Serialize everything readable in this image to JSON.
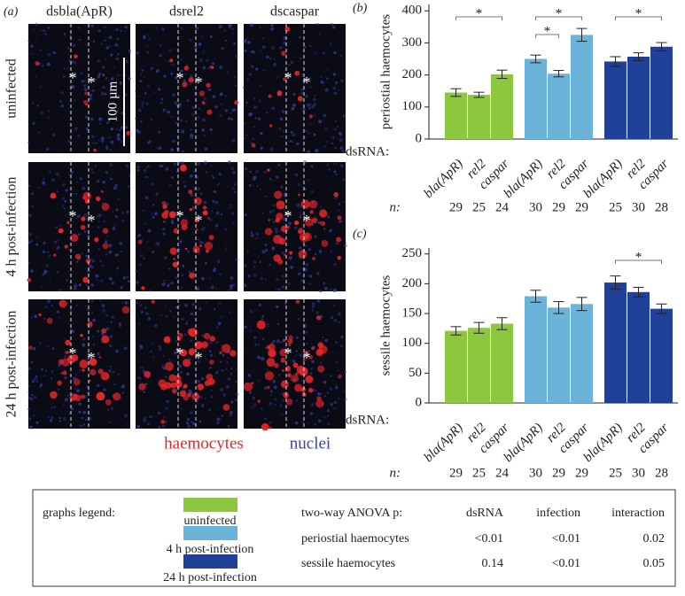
{
  "panel_a": {
    "label": "(a)",
    "columns": [
      "dsbla(ApR)",
      "dsrel2",
      "dscaspar"
    ],
    "rows": [
      "uninfected",
      "4 h post-infection",
      "24 h post-infection"
    ],
    "scale_bar": "100 µm",
    "asterisk": "*",
    "channels": [
      {
        "name": "haemocytes",
        "color": "#e8262a"
      },
      {
        "name": "nuclei",
        "color": "#3a3fa8"
      }
    ]
  },
  "chart_data": [
    {
      "type": "bar",
      "panel_label": "(b)",
      "ylabel": "periostial haemocytes",
      "x_label": "dsRNA:",
      "n_label": "n:",
      "categories": [
        "bla(ApR)",
        "rel2",
        "caspar"
      ],
      "ylim": [
        0,
        420
      ],
      "yticks": [
        0,
        100,
        200,
        300,
        400
      ],
      "series": [
        {
          "name": "uninfected",
          "color": "#8dc63f",
          "values": [
            145,
            138,
            202
          ],
          "errors": [
            12,
            8,
            13
          ],
          "n": [
            29,
            25,
            24
          ]
        },
        {
          "name": "4 h post-infection",
          "color": "#6bb3d9",
          "values": [
            250,
            204,
            325
          ],
          "errors": [
            12,
            10,
            20
          ],
          "n": [
            30,
            29,
            29
          ]
        },
        {
          "name": "24 h post-infection",
          "color": "#20409a",
          "values": [
            242,
            257,
            288
          ],
          "errors": [
            15,
            12,
            13
          ],
          "n": [
            25,
            30,
            28
          ]
        }
      ],
      "brackets": [
        {
          "series": 0,
          "from": 0,
          "to": 2,
          "label": "*"
        },
        {
          "series": 1,
          "from": 0,
          "to": 2,
          "label": "*"
        },
        {
          "series": 1,
          "from": 0,
          "to": 1,
          "label": "*"
        },
        {
          "series": 2,
          "from": 0,
          "to": 2,
          "label": "*"
        }
      ]
    },
    {
      "type": "bar",
      "panel_label": "(c)",
      "ylabel": "sessile haemocytes",
      "x_label": "dsRNA:",
      "n_label": "n:",
      "categories": [
        "bla(ApR)",
        "rel2",
        "caspar"
      ],
      "ylim": [
        0,
        260
      ],
      "yticks": [
        0,
        50,
        100,
        150,
        200,
        250
      ],
      "series": [
        {
          "name": "uninfected",
          "color": "#8dc63f",
          "values": [
            121,
            126,
            133
          ],
          "errors": [
            7,
            9,
            10
          ],
          "n": [
            29,
            25,
            24
          ]
        },
        {
          "name": "4 h post-infection",
          "color": "#6bb3d9",
          "values": [
            179,
            160,
            166
          ],
          "errors": [
            10,
            10,
            11
          ],
          "n": [
            30,
            29,
            29
          ]
        },
        {
          "name": "24 h post-infection",
          "color": "#20409a",
          "values": [
            202,
            186,
            158
          ],
          "errors": [
            11,
            8,
            8
          ],
          "n": [
            25,
            30,
            28
          ]
        }
      ],
      "brackets": [
        {
          "series": 2,
          "from": 0,
          "to": 2,
          "label": "*"
        }
      ]
    }
  ],
  "legend": {
    "title": "graphs legend:"
  },
  "anova_table": {
    "title": "two-way ANOVA p:",
    "columns": [
      "dsRNA",
      "infection",
      "interaction"
    ],
    "rows": [
      {
        "label": "periostial haemocytes",
        "values": [
          "<0.01",
          "<0.01",
          0.02
        ]
      },
      {
        "label": "sessile haemocytes",
        "values": [
          0.14,
          "<0.01",
          0.05
        ]
      }
    ]
  }
}
